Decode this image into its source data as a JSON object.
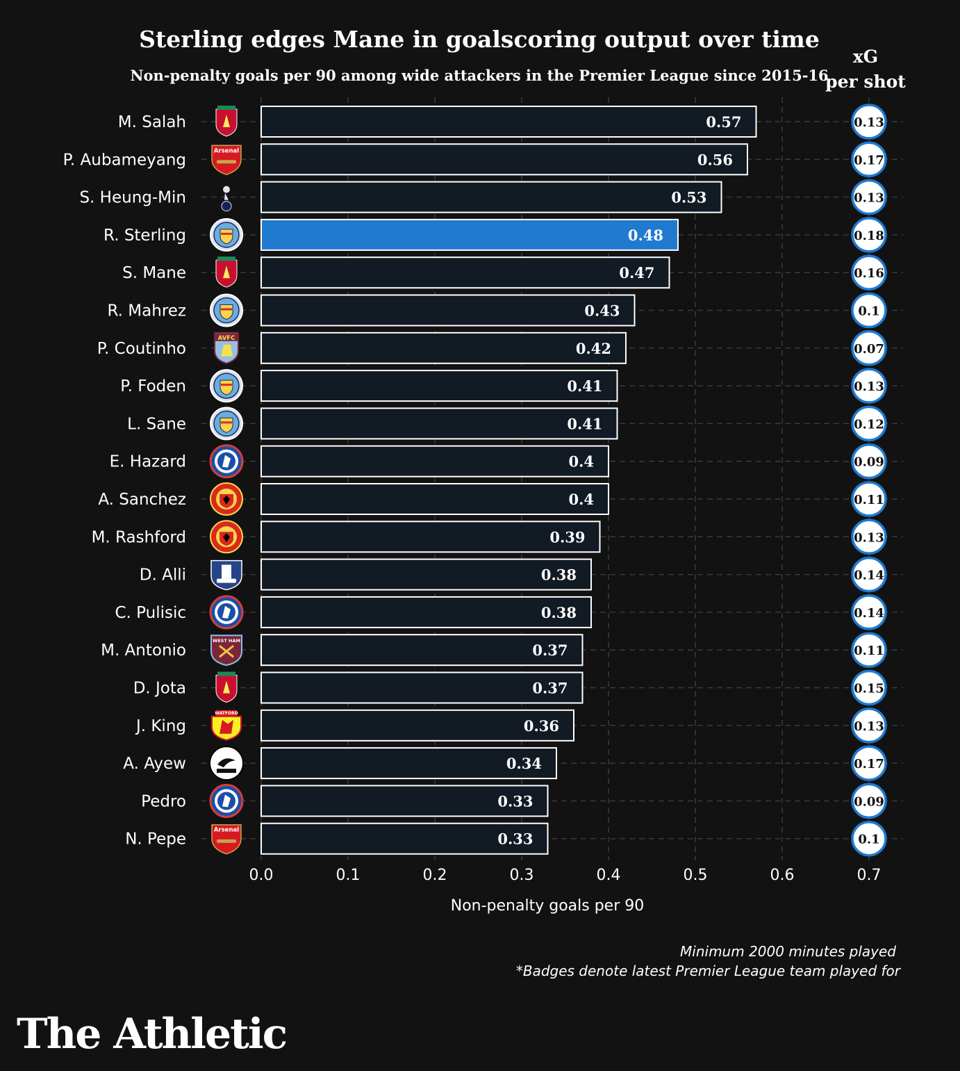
{
  "chart_data": {
    "type": "bar",
    "orientation": "horizontal",
    "title": "Sterling edges Mane in goalscoring output over time",
    "subtitle": "Non-penalty goals per 90 among wide attackers in the Premier League since 2015-16",
    "xlabel": "Non-penalty goals per 90",
    "xlim": [
      0,
      0.7
    ],
    "xticks": [
      "0.0",
      "0.1",
      "0.2",
      "0.3",
      "0.4",
      "0.5",
      "0.6",
      "0.7"
    ],
    "grid": true,
    "secondary_header": [
      "xG",
      "per shot"
    ],
    "highlight": "R. Sterling",
    "colors": {
      "bar": "#121a24",
      "highlight": "#1f7ad0",
      "edge": "#ffffff",
      "background": "#121212"
    },
    "categories": [
      "M. Salah",
      "P. Aubameyang",
      "S. Heung-Min",
      "R. Sterling",
      "S. Mane",
      "R. Mahrez",
      "P. Coutinho",
      "P. Foden",
      "L. Sane",
      "E. Hazard",
      "A. Sanchez",
      "M. Rashford",
      "D. Alli",
      "C. Pulisic",
      "M. Antonio",
      "D. Jota",
      "J. King",
      "A. Ayew",
      "Pedro",
      "N. Pepe"
    ],
    "values": [
      0.57,
      0.56,
      0.53,
      0.48,
      0.47,
      0.43,
      0.42,
      0.41,
      0.41,
      0.4,
      0.4,
      0.39,
      0.38,
      0.38,
      0.37,
      0.37,
      0.36,
      0.34,
      0.33,
      0.33
    ],
    "value_labels": [
      "0.57",
      "0.56",
      "0.53",
      "0.48",
      "0.47",
      "0.43",
      "0.42",
      "0.41",
      "0.41",
      "0.4",
      "0.4",
      "0.39",
      "0.38",
      "0.38",
      "0.37",
      "0.37",
      "0.36",
      "0.34",
      "0.33",
      "0.33"
    ],
    "xg_per_shot": [
      "0.13",
      "0.17",
      "0.13",
      "0.18",
      "0.16",
      "0.1",
      "0.07",
      "0.13",
      "0.12",
      "0.09",
      "0.11",
      "0.13",
      "0.14",
      "0.14",
      "0.11",
      "0.15",
      "0.13",
      "0.17",
      "0.09",
      "0.1"
    ],
    "badges": [
      "liverpool",
      "arsenal",
      "tottenham",
      "man-city",
      "liverpool",
      "man-city",
      "aston-villa",
      "man-city",
      "man-city",
      "chelsea",
      "man-utd",
      "man-utd",
      "everton",
      "chelsea",
      "west-ham",
      "liverpool",
      "watford",
      "swansea",
      "chelsea",
      "arsenal"
    ],
    "badge_texts": {
      "arsenal": "Arsenal",
      "aston-villa": "AVFC",
      "west-ham": "WEST HAM",
      "watford": "WATFORD"
    },
    "footnotes": [
      "Minimum 2000 minutes played",
      "*Badges denote latest Premier League team played for"
    ]
  },
  "brand": "The Athletic"
}
